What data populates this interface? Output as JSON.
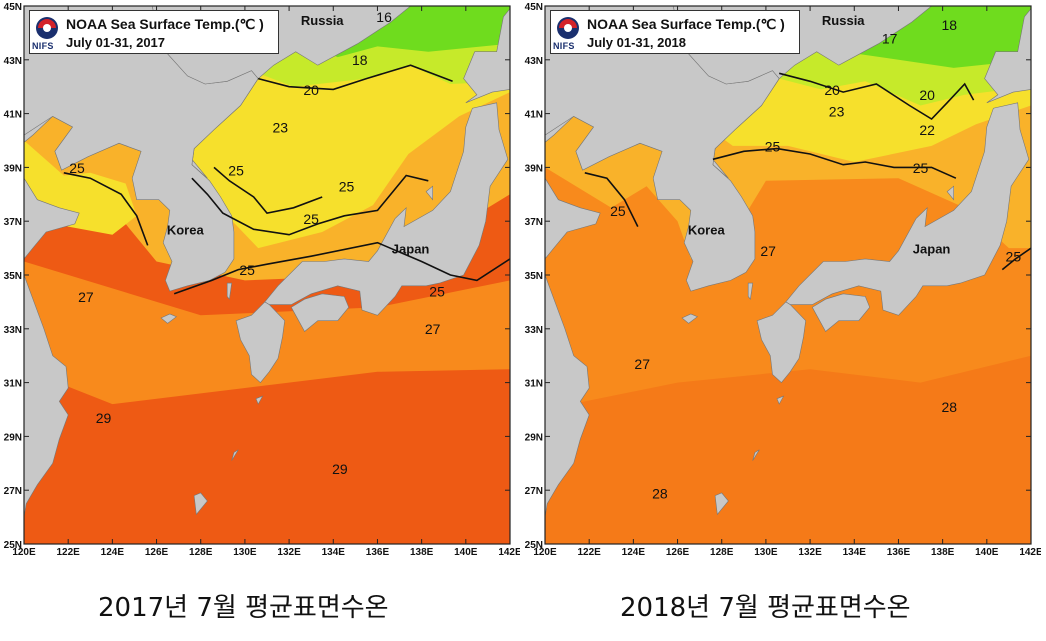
{
  "maps": [
    {
      "title": "NOAA Sea Surface Temp.(℃ )",
      "period": "July 01-31, 2017",
      "agency": "NIFS",
      "caption": "2017년 7월 평균표면수온",
      "place_labels": [
        {
          "text": "Russia",
          "lon": 133.5,
          "lat": 44.3
        },
        {
          "text": "Korea",
          "lon": 127.3,
          "lat": 36.5
        },
        {
          "text": "Japan",
          "lon": 137.5,
          "lat": 35.8
        }
      ],
      "contour_labels": [
        {
          "text": "16",
          "lon": 136.3,
          "lat": 44.4
        },
        {
          "text": "18",
          "lon": 135.2,
          "lat": 42.8
        },
        {
          "text": "20",
          "lon": 133.0,
          "lat": 41.7
        },
        {
          "text": "23",
          "lon": 131.6,
          "lat": 40.3
        },
        {
          "text": "25",
          "lon": 129.6,
          "lat": 38.7
        },
        {
          "text": "25",
          "lon": 134.6,
          "lat": 38.1
        },
        {
          "text": "25",
          "lon": 133.0,
          "lat": 36.9
        },
        {
          "text": "25",
          "lon": 122.4,
          "lat": 38.8
        },
        {
          "text": "25",
          "lon": 130.1,
          "lat": 35.0
        },
        {
          "text": "25",
          "lon": 138.7,
          "lat": 34.2
        },
        {
          "text": "27",
          "lon": 122.8,
          "lat": 34.0
        },
        {
          "text": "27",
          "lon": 138.5,
          "lat": 32.8
        },
        {
          "text": "29",
          "lon": 123.6,
          "lat": 29.5
        },
        {
          "text": "29",
          "lon": 134.3,
          "lat": 27.6
        }
      ]
    },
    {
      "title": "NOAA Sea Surface Temp.(℃ )",
      "period": "July 01-31, 2018",
      "agency": "NIFS",
      "caption": "2018년 7월 평균표면수온",
      "place_labels": [
        {
          "text": "Russia",
          "lon": 133.5,
          "lat": 44.3
        },
        {
          "text": "Korea",
          "lon": 127.3,
          "lat": 36.5
        },
        {
          "text": "Japan",
          "lon": 137.5,
          "lat": 35.8
        }
      ],
      "contour_labels": [
        {
          "text": "18",
          "lon": 138.3,
          "lat": 44.1
        },
        {
          "text": "17",
          "lon": 135.6,
          "lat": 43.6
        },
        {
          "text": "20",
          "lon": 133.0,
          "lat": 41.7
        },
        {
          "text": "20",
          "lon": 137.3,
          "lat": 41.5
        },
        {
          "text": "23",
          "lon": 133.2,
          "lat": 40.9
        },
        {
          "text": "22",
          "lon": 137.3,
          "lat": 40.2
        },
        {
          "text": "25",
          "lon": 130.3,
          "lat": 39.6
        },
        {
          "text": "25",
          "lon": 137.0,
          "lat": 38.8
        },
        {
          "text": "25",
          "lon": 123.3,
          "lat": 37.2
        },
        {
          "text": "27",
          "lon": 130.1,
          "lat": 35.7
        },
        {
          "text": "27",
          "lon": 124.4,
          "lat": 31.5
        },
        {
          "text": "28",
          "lon": 138.3,
          "lat": 29.9
        },
        {
          "text": "28",
          "lon": 125.2,
          "lat": 26.7
        },
        {
          "text": "25",
          "lon": 141.2,
          "lat": 35.5
        }
      ]
    }
  ],
  "axes": {
    "lon_ticks": [
      "120E",
      "122E",
      "124E",
      "126E",
      "128E",
      "130E",
      "132E",
      "134E",
      "136E",
      "138E",
      "140E",
      "142E"
    ],
    "lat_ticks": [
      "25N",
      "27N",
      "29N",
      "31N",
      "33N",
      "35N",
      "37N",
      "39N",
      "41N",
      "43N",
      "45N"
    ],
    "lon_values": [
      120,
      122,
      124,
      126,
      128,
      130,
      132,
      134,
      136,
      138,
      140,
      142
    ],
    "lat_values": [
      25,
      27,
      29,
      31,
      33,
      35,
      37,
      39,
      41,
      43,
      45
    ]
  },
  "colors": {
    "land": "#c8c8c8",
    "sst_29": "#ee5a14",
    "sst_27": "#f88a1c",
    "sst_25": "#f9b22a",
    "sst_23": "#f6e02c",
    "sst_20": "#c6ea2a",
    "sst_16": "#6fdc1e",
    "contour": "#111111"
  }
}
